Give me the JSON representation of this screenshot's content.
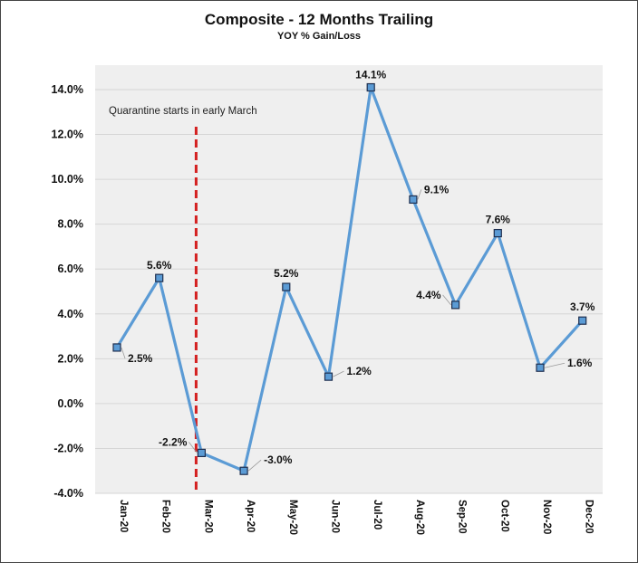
{
  "chart_data": {
    "type": "line",
    "title": "Composite - 12 Months Trailing",
    "subtitle": "YOY % Gain/Loss",
    "categories": [
      "Jan-20",
      "Feb-20",
      "Mar-20",
      "Apr-20",
      "May-20",
      "Jun-20",
      "Jul-20",
      "Aug-20",
      "Sep-20",
      "Oct-20",
      "Nov-20",
      "Dec-20"
    ],
    "series": [
      {
        "values": [
          2.5,
          5.6,
          -2.2,
          -3.0,
          5.2,
          1.2,
          14.1,
          9.1,
          4.4,
          7.6,
          1.6,
          3.7
        ]
      }
    ],
    "data_labels": [
      "2.5%",
      "5.6%",
      "-2.2%",
      "-3.0%",
      "5.2%",
      "1.2%",
      "14.1%",
      "9.1%",
      "4.4%",
      "7.6%",
      "1.6%",
      "3.7%"
    ],
    "ylim": [
      -4.0,
      14.0
    ],
    "y_ticks": [
      -4.0,
      -2.0,
      0.0,
      2.0,
      4.0,
      6.0,
      8.0,
      10.0,
      12.0,
      14.0
    ],
    "y_tick_labels": [
      "-4.0%",
      "-2.0%",
      "0.0%",
      "2.0%",
      "4.0%",
      "6.0%",
      "8.0%",
      "10.0%",
      "12.0%",
      "14.0%"
    ],
    "y_format": "percent",
    "grid": true,
    "legend": "none",
    "colors": {
      "line": "#5b9bd5",
      "marker_fill": "#5b9bd5",
      "marker_edge": "#1f2f4f",
      "plot_bg": "#efefef",
      "marker_line": "#d42020"
    },
    "annotation": {
      "text": "Quarantine starts in early March",
      "at_category": "Mar-20",
      "style": "dashed-vertical"
    }
  }
}
